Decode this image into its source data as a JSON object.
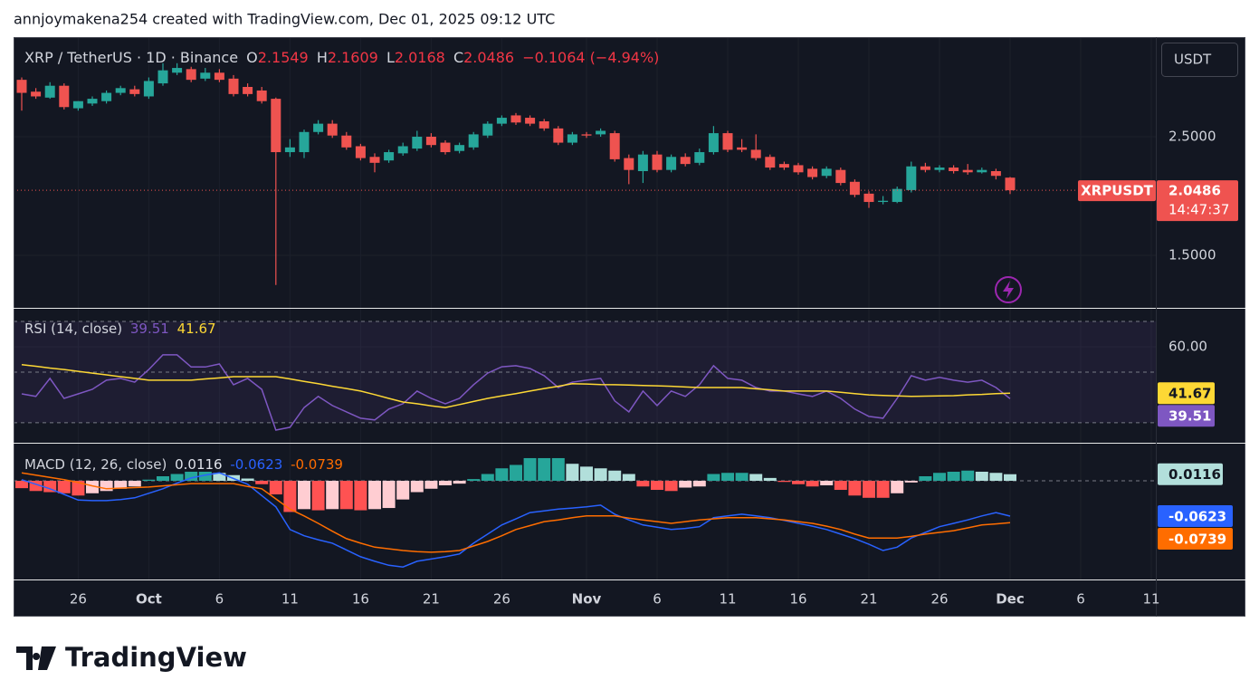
{
  "header": {
    "attribution": "annjoymakena254 created with TradingView.com, Dec 01, 2025 09:12 UTC"
  },
  "footer": {
    "brand": "TradingView"
  },
  "chart_data": [
    {
      "type": "candlestick",
      "title": "XRP / TetherUS · 1D · Binance",
      "currency": "USDT",
      "symbol_tag": "XRPUSDT",
      "countdown": "14:47:37",
      "legend_keys": [
        "O",
        "H",
        "L",
        "C"
      ],
      "change_label": "−0.1064 (−4.94%)",
      "up_color": "#26a69a",
      "down_color": "#ef5350",
      "categories": [
        "2025-09-22",
        "2025-09-23",
        "2025-09-24",
        "2025-09-25",
        "2025-09-26",
        "2025-09-27",
        "2025-09-28",
        "2025-09-29",
        "2025-09-30",
        "2025-10-01",
        "2025-10-02",
        "2025-10-03",
        "2025-10-04",
        "2025-10-05",
        "2025-10-06",
        "2025-10-07",
        "2025-10-08",
        "2025-10-09",
        "2025-10-10",
        "2025-10-11",
        "2025-10-12",
        "2025-10-13",
        "2025-10-14",
        "2025-10-15",
        "2025-10-16",
        "2025-10-17",
        "2025-10-18",
        "2025-10-19",
        "2025-10-20",
        "2025-10-21",
        "2025-10-22",
        "2025-10-23",
        "2025-10-24",
        "2025-10-25",
        "2025-10-26",
        "2025-10-27",
        "2025-10-28",
        "2025-10-29",
        "2025-10-30",
        "2025-10-31",
        "2025-11-01",
        "2025-11-02",
        "2025-11-03",
        "2025-11-04",
        "2025-11-05",
        "2025-11-06",
        "2025-11-07",
        "2025-11-08",
        "2025-11-09",
        "2025-11-10",
        "2025-11-11",
        "2025-11-12",
        "2025-11-13",
        "2025-11-14",
        "2025-11-15",
        "2025-11-16",
        "2025-11-17",
        "2025-11-18",
        "2025-11-19",
        "2025-11-20",
        "2025-11-21",
        "2025-11-22",
        "2025-11-23",
        "2025-11-24",
        "2025-11-25",
        "2025-11-26",
        "2025-11-27",
        "2025-11-28",
        "2025-11-29",
        "2025-11-30",
        "2025-12-01"
      ],
      "open": [
        2.98,
        2.88,
        2.83,
        2.93,
        2.74,
        2.78,
        2.8,
        2.87,
        2.9,
        2.84,
        2.95,
        3.04,
        3.07,
        2.99,
        3.04,
        2.99,
        2.92,
        2.89,
        2.82,
        2.37,
        2.37,
        2.54,
        2.61,
        2.51,
        2.42,
        2.33,
        2.3,
        2.36,
        2.4,
        2.5,
        2.45,
        2.38,
        2.41,
        2.51,
        2.61,
        2.68,
        2.66,
        2.63,
        2.57,
        2.45,
        2.52,
        2.52,
        2.53,
        2.32,
        2.21,
        2.35,
        2.22,
        2.33,
        2.28,
        2.37,
        2.53,
        2.41,
        2.39,
        2.33,
        2.27,
        2.26,
        2.23,
        2.17,
        2.22,
        2.12,
        2.02,
        1.95,
        1.95,
        2.05,
        2.25,
        2.22,
        2.24,
        2.22,
        2.2,
        2.21,
        2.1549
      ],
      "high": [
        3.0,
        2.91,
        2.96,
        2.95,
        2.8,
        2.84,
        2.89,
        2.93,
        2.93,
        3.0,
        3.12,
        3.12,
        3.09,
        3.08,
        3.07,
        3.02,
        2.95,
        2.92,
        2.83,
        2.48,
        2.56,
        2.64,
        2.64,
        2.54,
        2.44,
        2.36,
        2.39,
        2.45,
        2.55,
        2.53,
        2.47,
        2.45,
        2.54,
        2.63,
        2.68,
        2.7,
        2.68,
        2.65,
        2.59,
        2.54,
        2.54,
        2.57,
        2.55,
        2.35,
        2.38,
        2.38,
        2.35,
        2.36,
        2.4,
        2.59,
        2.55,
        2.48,
        2.52,
        2.35,
        2.29,
        2.28,
        2.25,
        2.25,
        2.24,
        2.14,
        2.04,
        2.0,
        2.08,
        2.29,
        2.28,
        2.26,
        2.26,
        2.27,
        2.24,
        2.23,
        2.1609
      ],
      "low": [
        2.72,
        2.82,
        2.82,
        2.73,
        2.72,
        2.76,
        2.78,
        2.85,
        2.84,
        2.82,
        2.93,
        3.02,
        2.96,
        2.97,
        2.96,
        2.84,
        2.84,
        2.78,
        1.25,
        2.33,
        2.32,
        2.52,
        2.49,
        2.39,
        2.3,
        2.2,
        2.28,
        2.34,
        2.38,
        2.41,
        2.35,
        2.36,
        2.39,
        2.49,
        2.59,
        2.6,
        2.59,
        2.55,
        2.43,
        2.43,
        2.49,
        2.5,
        2.29,
        2.1,
        2.11,
        2.2,
        2.2,
        2.25,
        2.26,
        2.35,
        2.37,
        2.37,
        2.3,
        2.22,
        2.22,
        2.18,
        2.14,
        2.15,
        2.09,
        1.99,
        1.9,
        1.93,
        1.94,
        2.03,
        2.2,
        2.2,
        2.19,
        2.18,
        2.19,
        2.14,
        2.0168
      ],
      "close": [
        2.87,
        2.84,
        2.93,
        2.75,
        2.8,
        2.82,
        2.87,
        2.91,
        2.86,
        2.97,
        3.06,
        3.08,
        2.98,
        3.04,
        2.98,
        2.86,
        2.86,
        2.8,
        2.37,
        2.41,
        2.54,
        2.61,
        2.51,
        2.41,
        2.32,
        2.28,
        2.37,
        2.42,
        2.5,
        2.43,
        2.37,
        2.43,
        2.52,
        2.61,
        2.66,
        2.62,
        2.61,
        2.57,
        2.45,
        2.52,
        2.51,
        2.55,
        2.31,
        2.22,
        2.35,
        2.22,
        2.33,
        2.27,
        2.37,
        2.53,
        2.39,
        2.39,
        2.32,
        2.24,
        2.24,
        2.2,
        2.16,
        2.23,
        2.11,
        2.01,
        1.95,
        1.96,
        2.06,
        2.25,
        2.22,
        2.24,
        2.21,
        2.2,
        2.22,
        2.17,
        2.0486
      ],
      "ylim": [
        1.057,
        3.34
      ],
      "yticks": [
        {
          "value": 1.5,
          "label": "1.5000"
        },
        {
          "value": 2.5,
          "label": "2.5000"
        }
      ],
      "xticks": [
        {
          "value": "2025-09-26",
          "label": "26"
        },
        {
          "value": "2025-10-01",
          "label": "Oct"
        },
        {
          "value": "2025-10-06",
          "label": "6"
        },
        {
          "value": "2025-10-11",
          "label": "11"
        },
        {
          "value": "2025-10-16",
          "label": "16"
        },
        {
          "value": "2025-10-21",
          "label": "21"
        },
        {
          "value": "2025-10-26",
          "label": "26"
        },
        {
          "value": "2025-11-01",
          "label": "Nov"
        },
        {
          "value": "2025-11-06",
          "label": "6"
        },
        {
          "value": "2025-11-11",
          "label": "11"
        },
        {
          "value": "2025-11-16",
          "label": "16"
        },
        {
          "value": "2025-11-21",
          "label": "21"
        },
        {
          "value": "2025-11-26",
          "label": "26"
        },
        {
          "value": "2025-12-01",
          "label": "Dec"
        },
        {
          "value": "2025-12-06",
          "label": "6"
        },
        {
          "value": "2025-12-11",
          "label": "11"
        }
      ]
    },
    {
      "type": "line",
      "title": "RSI (14, close)",
      "ylim": [
        22.1,
        75
      ],
      "yticks": [
        {
          "value": 60,
          "label": "60.00"
        }
      ],
      "levels": [
        70,
        50,
        30
      ],
      "series": [
        {
          "color": "#7e57c2",
          "values": [
            41.4,
            40.4,
            47.5,
            39.6,
            41.4,
            43.2,
            46.8,
            47.5,
            46,
            51,
            56.8,
            56.8,
            52,
            52,
            53.2,
            45,
            47.5,
            43.2,
            27.1,
            28.2,
            36,
            40.4,
            36.8,
            34.3,
            31.8,
            31.1,
            35.4,
            37.5,
            42.5,
            39.6,
            37.5,
            39.6,
            45,
            49.6,
            52.1,
            52.5,
            51.4,
            48.6,
            43.9,
            46,
            46.8,
            47.5,
            38.6,
            34.3,
            42.5,
            36.8,
            42.5,
            40.4,
            45,
            52.5,
            47.5,
            46.8,
            43.9,
            42.5,
            42.5,
            41.4,
            40.4,
            42.5,
            39.6,
            35.4,
            32.5,
            31.8,
            39.6,
            48.6,
            46.8,
            47.9,
            46.8,
            46,
            46.8,
            43.9,
            39.51
          ]
        },
        {
          "color": "#fdd835",
          "values": [
            52.9,
            52.3,
            51.6,
            51,
            50.3,
            49.6,
            48.9,
            48.2,
            47.5,
            46.8,
            46.8,
            46.8,
            46.8,
            47.3,
            47.7,
            48.2,
            48.2,
            48.2,
            48.2,
            47.3,
            46.3,
            45.4,
            44.4,
            43.5,
            42.5,
            41.1,
            39.6,
            38.2,
            37.5,
            36.7,
            36,
            37.2,
            38.4,
            39.6,
            40.6,
            41.5,
            42.5,
            43.5,
            44.4,
            45.4,
            45.3,
            45.1,
            45,
            44.9,
            44.7,
            44.6,
            44.4,
            44.1,
            43.9,
            43.9,
            43.9,
            43.9,
            43.4,
            43,
            42.5,
            42.5,
            42.5,
            42.5,
            42,
            41.5,
            41,
            40.8,
            40.6,
            40.4,
            40.5,
            40.6,
            40.7,
            41,
            41.2,
            41.5,
            41.67
          ]
        }
      ]
    },
    {
      "type": "macd",
      "title": "MACD (12, 26, close)",
      "ylim": [
        -0.1741,
        0.0655
      ],
      "levels": [
        0
      ],
      "histogram": [
        -0.013,
        -0.018,
        -0.02,
        -0.022,
        -0.026,
        -0.022,
        -0.018,
        -0.014,
        -0.01,
        0.002,
        0.008,
        0.012,
        0.016,
        0.016,
        0.014,
        0.01,
        0.004,
        -0.006,
        -0.024,
        -0.055,
        -0.05,
        -0.052,
        -0.05,
        -0.05,
        -0.052,
        -0.05,
        -0.048,
        -0.033,
        -0.02,
        -0.014,
        -0.008,
        -0.005,
        0.003,
        0.012,
        0.022,
        0.028,
        0.04,
        0.04,
        0.04,
        0.03,
        0.025,
        0.022,
        0.018,
        0.012,
        -0.01,
        -0.016,
        -0.018,
        -0.012,
        -0.01,
        0.012,
        0.014,
        0.014,
        0.012,
        0.005,
        -0.002,
        -0.006,
        -0.01,
        -0.008,
        -0.016,
        -0.026,
        -0.03,
        -0.03,
        -0.022,
        -0.003,
        0.008,
        0.014,
        0.016,
        0.018,
        0.016,
        0.014,
        0.0116
      ],
      "series": [
        {
          "color": "#2962ff",
          "values": [
            0.002,
            -0.006,
            -0.014,
            -0.024,
            -0.034,
            -0.035,
            -0.035,
            -0.033,
            -0.03,
            -0.022,
            -0.014,
            -0.004,
            0.005,
            0.01,
            0.014,
            0.004,
            -0.006,
            -0.026,
            -0.046,
            -0.086,
            -0.097,
            -0.104,
            -0.11,
            -0.122,
            -0.134,
            -0.142,
            -0.149,
            -0.152,
            -0.142,
            -0.138,
            -0.134,
            -0.129,
            -0.11,
            -0.094,
            -0.078,
            -0.067,
            -0.056,
            -0.053,
            -0.05,
            -0.048,
            -0.046,
            -0.043,
            -0.059,
            -0.069,
            -0.078,
            -0.082,
            -0.086,
            -0.084,
            -0.081,
            -0.065,
            -0.062,
            -0.059,
            -0.062,
            -0.065,
            -0.07,
            -0.075,
            -0.08,
            -0.086,
            -0.094,
            -0.102,
            -0.112,
            -0.123,
            -0.117,
            -0.101,
            -0.091,
            -0.081,
            -0.075,
            -0.069,
            -0.062,
            -0.056,
            -0.0623
          ]
        },
        {
          "color": "#ff6d00",
          "values": [
            0.014,
            0.01,
            0.006,
            0.002,
            -0.003,
            -0.009,
            -0.014,
            -0.013,
            -0.012,
            -0.011,
            -0.009,
            -0.007,
            -0.005,
            -0.005,
            -0.005,
            -0.005,
            -0.01,
            -0.014,
            -0.032,
            -0.05,
            -0.062,
            -0.075,
            -0.089,
            -0.102,
            -0.11,
            -0.117,
            -0.12,
            -0.123,
            -0.125,
            -0.126,
            -0.125,
            -0.123,
            -0.115,
            -0.107,
            -0.097,
            -0.086,
            -0.079,
            -0.072,
            -0.069,
            -0.065,
            -0.062,
            -0.062,
            -0.062,
            -0.066,
            -0.069,
            -0.072,
            -0.075,
            -0.072,
            -0.069,
            -0.067,
            -0.065,
            -0.065,
            -0.065,
            -0.067,
            -0.069,
            -0.072,
            -0.075,
            -0.08,
            -0.086,
            -0.094,
            -0.101,
            -0.101,
            -0.101,
            -0.098,
            -0.094,
            -0.091,
            -0.088,
            -0.083,
            -0.078,
            -0.076,
            -0.0739
          ]
        }
      ]
    }
  ]
}
